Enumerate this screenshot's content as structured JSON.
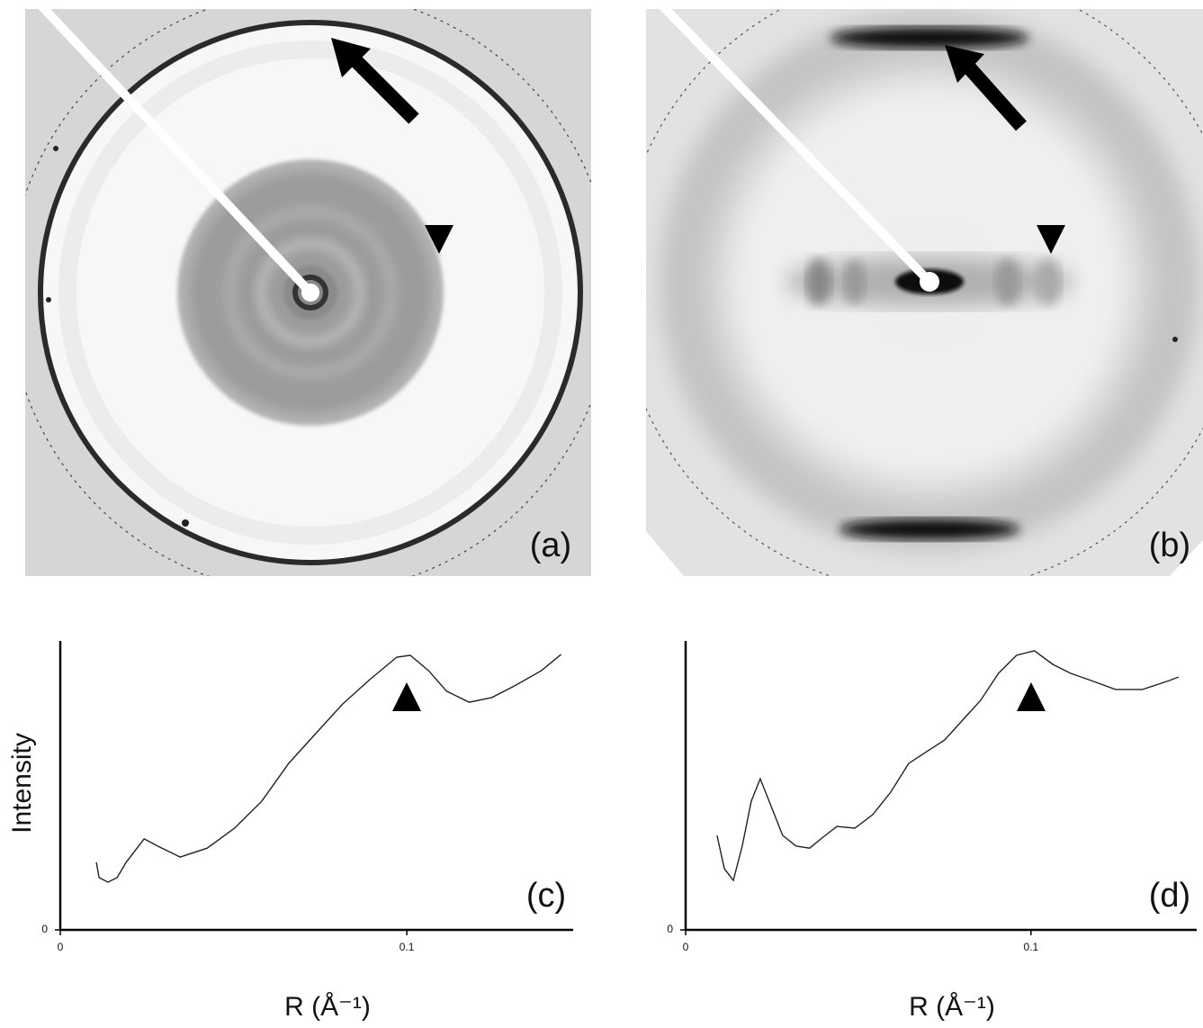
{
  "panels": [
    {
      "label": "(a)"
    },
    {
      "label": "(b)"
    }
  ],
  "chart_data": [
    {
      "type": "line",
      "label": "(c)",
      "y_label": "Intensity",
      "x_label": "R (Å⁻¹)",
      "xlim": [
        0,
        0.148
      ],
      "xticks": [
        0,
        0.1
      ],
      "ylim": [
        0,
        100
      ],
      "yticks": [
        0
      ],
      "color": "#222222",
      "x": [
        0.0104,
        0.0112,
        0.0138,
        0.0164,
        0.019,
        0.0242,
        0.0281,
        0.0346,
        0.0424,
        0.0503,
        0.0581,
        0.0659,
        0.0737,
        0.0815,
        0.0893,
        0.0971,
        0.101,
        0.1063,
        0.1115,
        0.118,
        0.1245,
        0.131,
        0.1388,
        0.1445
      ],
      "values": [
        23.4,
        18.1,
        16.5,
        18.1,
        23.4,
        31.5,
        29.0,
        25.2,
        28.3,
        35.2,
        44.5,
        57.6,
        67.9,
        78.2,
        86.6,
        94.4,
        95.0,
        89.7,
        82.6,
        78.8,
        80.4,
        84.4,
        89.7,
        95.3
      ]
    },
    {
      "type": "line",
      "label": "(d)",
      "x_label": "R (Å⁻¹)",
      "xlim": [
        0,
        0.148
      ],
      "xticks": [
        0,
        0.1
      ],
      "ylim": [
        0,
        100
      ],
      "yticks": [
        0
      ],
      "color": "#222222",
      "x": [
        0.0091,
        0.0112,
        0.0138,
        0.0164,
        0.019,
        0.0216,
        0.0242,
        0.0281,
        0.032,
        0.0359,
        0.0398,
        0.0438,
        0.049,
        0.0542,
        0.0594,
        0.0646,
        0.0698,
        0.075,
        0.0802,
        0.0854,
        0.0906,
        0.0958,
        0.101,
        0.1063,
        0.1115,
        0.1167,
        0.1245,
        0.1323,
        0.1401,
        0.1427
      ],
      "values": [
        32.7,
        21.2,
        17.1,
        29.0,
        44.5,
        52.3,
        44.5,
        32.7,
        29.0,
        28.3,
        32.1,
        35.8,
        35.2,
        39.9,
        47.7,
        57.6,
        61.7,
        65.7,
        72.6,
        79.4,
        88.8,
        95.0,
        96.6,
        91.9,
        88.8,
        86.6,
        83.2,
        83.2,
        86.3,
        87.5
      ]
    }
  ]
}
